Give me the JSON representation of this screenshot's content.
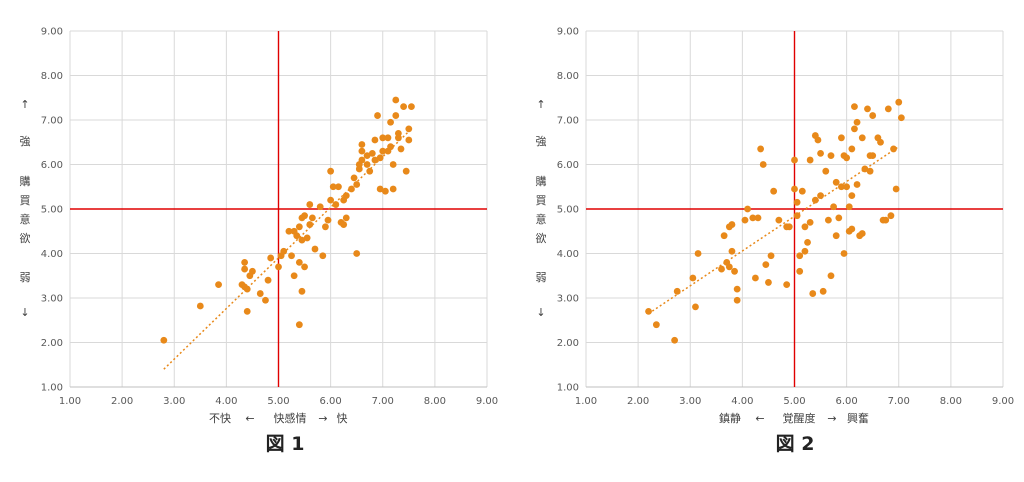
{
  "colors": {
    "points": "#e8891a",
    "trend": "#e8891a",
    "reference": "#e00000",
    "grid": "#d9d9d9",
    "axis": "#bfbfbf"
  },
  "chart_data": [
    {
      "type": "scatter",
      "caption": "図 1",
      "xlabel": [
        "不快",
        "←",
        "快感情",
        "→",
        "快"
      ],
      "ylabel": [
        "↑",
        "強",
        "購",
        "買",
        "意",
        "欲",
        "弱",
        "↓"
      ],
      "xlim": [
        1,
        9
      ],
      "ylim": [
        1,
        9
      ],
      "x_ticks": [
        "1.00",
        "2.00",
        "3.00",
        "4.00",
        "5.00",
        "6.00",
        "7.00",
        "8.00",
        "9.00"
      ],
      "y_ticks": [
        "1.00",
        "2.00",
        "3.00",
        "4.00",
        "5.00",
        "6.00",
        "7.00",
        "8.00",
        "9.00"
      ],
      "grid": true,
      "reference_lines": {
        "x": 5.0,
        "y": 5.0
      },
      "trendline": {
        "x": [
          2.8,
          7.55
        ],
        "y": [
          1.4,
          6.8
        ]
      },
      "points": [
        [
          2.8,
          2.05
        ],
        [
          3.5,
          2.82
        ],
        [
          3.85,
          3.3
        ],
        [
          4.3,
          3.3
        ],
        [
          4.35,
          3.65
        ],
        [
          4.35,
          3.8
        ],
        [
          4.35,
          3.25
        ],
        [
          4.4,
          3.2
        ],
        [
          4.45,
          3.5
        ],
        [
          4.5,
          3.6
        ],
        [
          4.4,
          2.7
        ],
        [
          4.65,
          3.1
        ],
        [
          4.75,
          2.95
        ],
        [
          4.8,
          3.4
        ],
        [
          4.85,
          3.9
        ],
        [
          5.0,
          3.7
        ],
        [
          5.05,
          3.95
        ],
        [
          5.1,
          4.05
        ],
        [
          5.2,
          4.5
        ],
        [
          5.25,
          3.95
        ],
        [
          5.3,
          4.5
        ],
        [
          5.3,
          3.5
        ],
        [
          5.35,
          4.4
        ],
        [
          5.4,
          3.8
        ],
        [
          5.4,
          4.6
        ],
        [
          5.45,
          4.3
        ],
        [
          5.45,
          4.8
        ],
        [
          5.5,
          4.85
        ],
        [
          5.5,
          3.7
        ],
        [
          5.45,
          3.15
        ],
        [
          5.4,
          2.4
        ],
        [
          5.55,
          4.35
        ],
        [
          5.6,
          4.65
        ],
        [
          5.6,
          5.1
        ],
        [
          5.65,
          4.8
        ],
        [
          5.7,
          4.1
        ],
        [
          5.8,
          5.05
        ],
        [
          5.85,
          3.95
        ],
        [
          5.9,
          4.6
        ],
        [
          5.95,
          4.75
        ],
        [
          6.0,
          5.2
        ],
        [
          6.0,
          5.85
        ],
        [
          6.05,
          5.5
        ],
        [
          6.1,
          5.1
        ],
        [
          6.15,
          5.5
        ],
        [
          6.2,
          4.7
        ],
        [
          6.25,
          4.65
        ],
        [
          6.3,
          4.8
        ],
        [
          6.25,
          5.2
        ],
        [
          6.3,
          5.3
        ],
        [
          6.4,
          5.45
        ],
        [
          6.45,
          5.7
        ],
        [
          6.5,
          5.55
        ],
        [
          6.5,
          4.0
        ],
        [
          6.55,
          6.0
        ],
        [
          6.55,
          5.9
        ],
        [
          6.6,
          6.3
        ],
        [
          6.6,
          6.45
        ],
        [
          6.6,
          6.1
        ],
        [
          6.7,
          6.2
        ],
        [
          6.7,
          6.0
        ],
        [
          6.75,
          5.85
        ],
        [
          6.8,
          6.25
        ],
        [
          6.85,
          6.1
        ],
        [
          6.85,
          6.55
        ],
        [
          6.9,
          7.1
        ],
        [
          6.95,
          6.15
        ],
        [
          6.95,
          5.45
        ],
        [
          7.0,
          6.6
        ],
        [
          7.0,
          6.3
        ],
        [
          7.05,
          5.4
        ],
        [
          7.1,
          6.3
        ],
        [
          7.1,
          6.6
        ],
        [
          7.15,
          6.4
        ],
        [
          7.15,
          6.95
        ],
        [
          7.2,
          6.0
        ],
        [
          7.2,
          5.45
        ],
        [
          7.25,
          7.45
        ],
        [
          7.25,
          7.1
        ],
        [
          7.3,
          6.7
        ],
        [
          7.3,
          6.6
        ],
        [
          7.35,
          6.35
        ],
        [
          7.4,
          7.3
        ],
        [
          7.45,
          5.85
        ],
        [
          7.5,
          6.55
        ],
        [
          7.5,
          6.8
        ],
        [
          7.55,
          7.3
        ]
      ]
    },
    {
      "type": "scatter",
      "caption": "図 2",
      "xlabel": [
        "鎮静",
        "←",
        "覚醒度",
        "→",
        "興奮"
      ],
      "ylabel": [
        "↑",
        "強",
        "購",
        "買",
        "意",
        "欲",
        "弱",
        "↓"
      ],
      "xlim": [
        1,
        9
      ],
      "ylim": [
        1,
        9
      ],
      "x_ticks": [
        "1.00",
        "2.00",
        "3.00",
        "4.00",
        "5.00",
        "6.00",
        "7.00",
        "8.00",
        "9.00"
      ],
      "y_ticks": [
        "1.00",
        "2.00",
        "3.00",
        "4.00",
        "5.00",
        "6.00",
        "7.00",
        "8.00",
        "9.00"
      ],
      "grid": true,
      "reference_lines": {
        "x": 5.0,
        "y": 5.0
      },
      "trendline": {
        "x": [
          2.2,
          7.0
        ],
        "y": [
          2.65,
          6.4
        ]
      },
      "points": [
        [
          2.2,
          2.7
        ],
        [
          2.35,
          2.4
        ],
        [
          2.7,
          2.05
        ],
        [
          2.75,
          3.15
        ],
        [
          3.05,
          3.45
        ],
        [
          3.1,
          2.8
        ],
        [
          3.15,
          4.0
        ],
        [
          3.6,
          3.65
        ],
        [
          3.65,
          4.4
        ],
        [
          3.7,
          3.8
        ],
        [
          3.75,
          4.6
        ],
        [
          3.75,
          3.7
        ],
        [
          3.8,
          4.65
        ],
        [
          3.8,
          4.05
        ],
        [
          3.85,
          3.6
        ],
        [
          3.9,
          3.2
        ],
        [
          3.9,
          2.95
        ],
        [
          4.05,
          4.75
        ],
        [
          4.1,
          5.0
        ],
        [
          4.2,
          4.8
        ],
        [
          4.25,
          3.45
        ],
        [
          4.3,
          4.8
        ],
        [
          4.35,
          6.35
        ],
        [
          4.4,
          6.0
        ],
        [
          4.45,
          3.75
        ],
        [
          4.5,
          3.35
        ],
        [
          4.55,
          3.95
        ],
        [
          4.6,
          5.4
        ],
        [
          4.7,
          4.75
        ],
        [
          4.85,
          4.6
        ],
        [
          4.85,
          3.3
        ],
        [
          4.9,
          4.6
        ],
        [
          5.0,
          5.45
        ],
        [
          5.0,
          6.1
        ],
        [
          5.05,
          5.15
        ],
        [
          5.05,
          4.85
        ],
        [
          5.1,
          3.95
        ],
        [
          5.1,
          3.6
        ],
        [
          5.15,
          5.4
        ],
        [
          5.2,
          4.05
        ],
        [
          5.2,
          4.6
        ],
        [
          5.25,
          4.25
        ],
        [
          5.3,
          4.7
        ],
        [
          5.3,
          6.1
        ],
        [
          5.35,
          3.1
        ],
        [
          5.4,
          5.2
        ],
        [
          5.4,
          6.65
        ],
        [
          5.45,
          6.55
        ],
        [
          5.5,
          6.25
        ],
        [
          5.5,
          5.3
        ],
        [
          5.55,
          3.15
        ],
        [
          5.6,
          5.85
        ],
        [
          5.65,
          4.75
        ],
        [
          5.7,
          6.2
        ],
        [
          5.7,
          3.5
        ],
        [
          5.75,
          5.05
        ],
        [
          5.8,
          5.6
        ],
        [
          5.8,
          4.4
        ],
        [
          5.85,
          4.8
        ],
        [
          5.9,
          6.6
        ],
        [
          5.9,
          5.5
        ],
        [
          5.95,
          6.2
        ],
        [
          5.95,
          4.0
        ],
        [
          6.0,
          6.15
        ],
        [
          6.0,
          5.5
        ],
        [
          6.05,
          5.05
        ],
        [
          6.05,
          4.5
        ],
        [
          6.1,
          6.35
        ],
        [
          6.1,
          5.3
        ],
        [
          6.1,
          4.55
        ],
        [
          6.15,
          7.3
        ],
        [
          6.15,
          6.8
        ],
        [
          6.2,
          6.95
        ],
        [
          6.2,
          5.55
        ],
        [
          6.25,
          4.4
        ],
        [
          6.3,
          6.6
        ],
        [
          6.3,
          4.45
        ],
        [
          6.35,
          5.9
        ],
        [
          6.4,
          7.25
        ],
        [
          6.45,
          6.2
        ],
        [
          6.45,
          5.85
        ],
        [
          6.5,
          6.2
        ],
        [
          6.5,
          7.1
        ],
        [
          6.6,
          6.6
        ],
        [
          6.65,
          6.5
        ],
        [
          6.7,
          4.75
        ],
        [
          6.75,
          4.75
        ],
        [
          6.8,
          7.25
        ],
        [
          6.85,
          4.85
        ],
        [
          6.9,
          6.35
        ],
        [
          6.95,
          5.45
        ],
        [
          7.0,
          7.4
        ],
        [
          7.05,
          7.05
        ]
      ]
    }
  ]
}
